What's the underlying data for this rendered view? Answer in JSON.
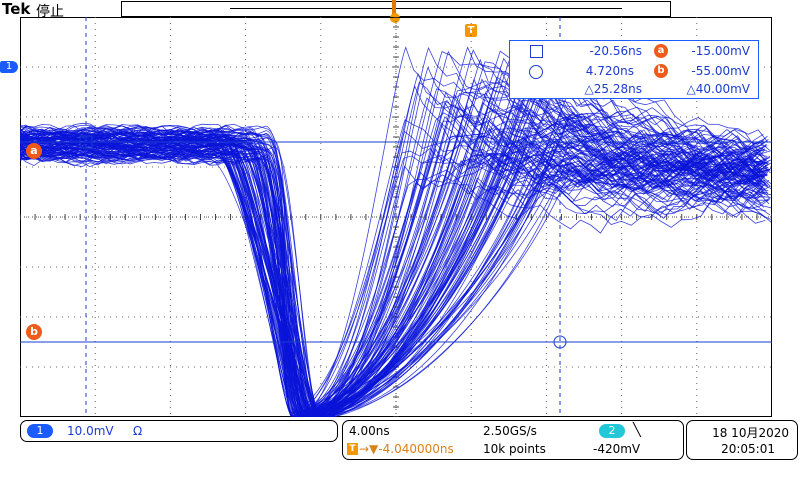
{
  "header": {
    "brand": "Tek",
    "status": "停止"
  },
  "record_view": {
    "trigger_marker": "trigger-position-icon",
    "trigger_label": "T"
  },
  "channel_marker": {
    "label": "1"
  },
  "cursor_markers": {
    "a": "a",
    "b": "b"
  },
  "cursor_readout": {
    "h_cursor1": "-20.56ns",
    "h_cursor2": "4.720ns",
    "h_delta": "△25.28ns",
    "v_a_label": "a",
    "v_a": "-15.00mV",
    "v_b_label": "b",
    "v_b": "-55.00mV",
    "v_delta": "△40.00mV"
  },
  "channel_box": {
    "ch_label": "1",
    "scale": "10.0mV",
    "impedance": "Ω"
  },
  "acquisition_box": {
    "time_per_div": "4.00ns",
    "sample_rate": "2.50GS/s",
    "trigger_symbol": "T",
    "trigger_delay": "→▼-4.040000ns",
    "record_length": "10k points",
    "trigger_source": "2",
    "trigger_slope": "╲",
    "trigger_level": "-420mV"
  },
  "datetime": {
    "date": "18 10月2020",
    "time": "20:05:01"
  },
  "colors": {
    "trace": "#0a14d8",
    "cursor_marker": "#f05a1a",
    "trigger": "#f39800",
    "ch1": "#1a5cff",
    "ch2": "#22c8d8"
  }
}
